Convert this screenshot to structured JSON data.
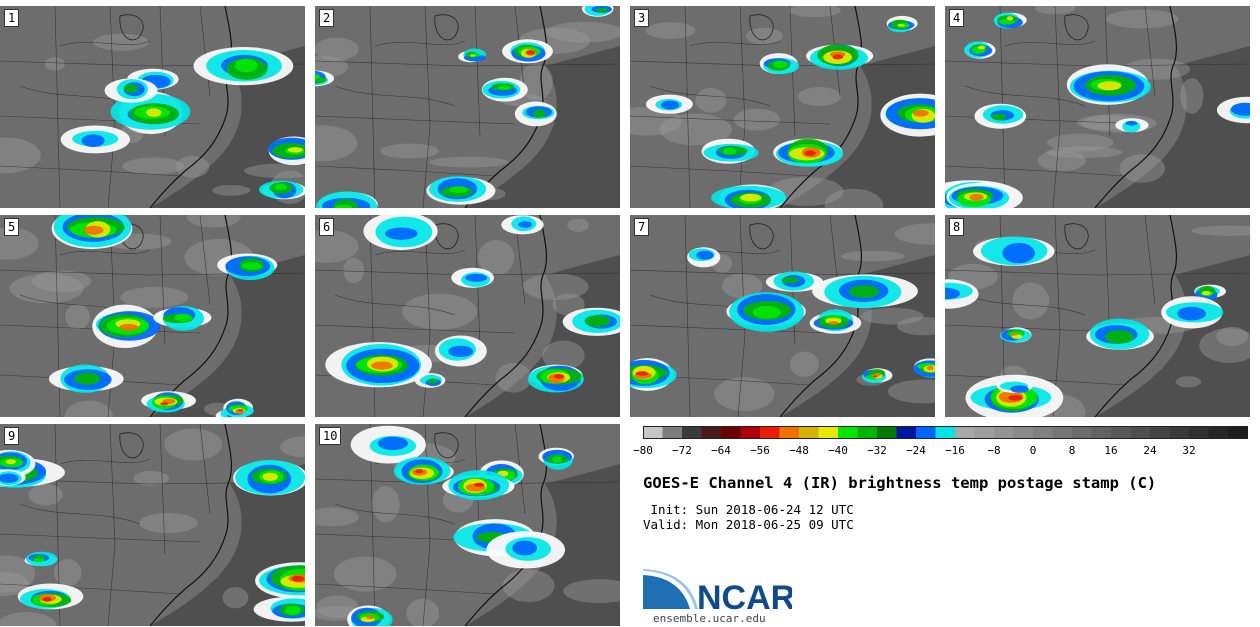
{
  "panels": [
    {
      "label": "1"
    },
    {
      "label": "2"
    },
    {
      "label": "3"
    },
    {
      "label": "4"
    },
    {
      "label": "5"
    },
    {
      "label": "6"
    },
    {
      "label": "7"
    },
    {
      "label": "8"
    },
    {
      "label": "9"
    },
    {
      "label": "10"
    }
  ],
  "colorbar": {
    "min": -80,
    "max": 44,
    "step": 4,
    "tick_labels": [
      "−80",
      "−72",
      "−64",
      "−56",
      "−48",
      "−40",
      "−32",
      "−24",
      "−16",
      "−8",
      "0",
      "8",
      "16",
      "24",
      "32"
    ],
    "colors": [
      "#c6c6c6",
      "#7d7d7d",
      "#3a3a3a",
      "#4a1a1a",
      "#6a0000",
      "#b00000",
      "#e81e00",
      "#f27000",
      "#d4b400",
      "#e8e800",
      "#00e600",
      "#00b400",
      "#007a00",
      "#0014a0",
      "#0064ff",
      "#00e6e6",
      "#a8a8a8",
      "#9e9e9e",
      "#949494",
      "#8a8a8a",
      "#808080",
      "#767676",
      "#6c6c6c",
      "#626262",
      "#585858",
      "#4e4e4e",
      "#444444",
      "#3a3a3a",
      "#303030",
      "#262626",
      "#1e1e1e"
    ]
  },
  "title": "GOES-E Channel 4 (IR) brightness temp postage stamp (C)",
  "init_line": " Init: Sun 2018-06-24 12 UTC",
  "valid_line": "Valid: Mon 2018-06-25 09 UTC",
  "logo": {
    "text": "NCAR",
    "url": "ensemble.ucar.edu",
    "color": "#0f4a8a"
  }
}
